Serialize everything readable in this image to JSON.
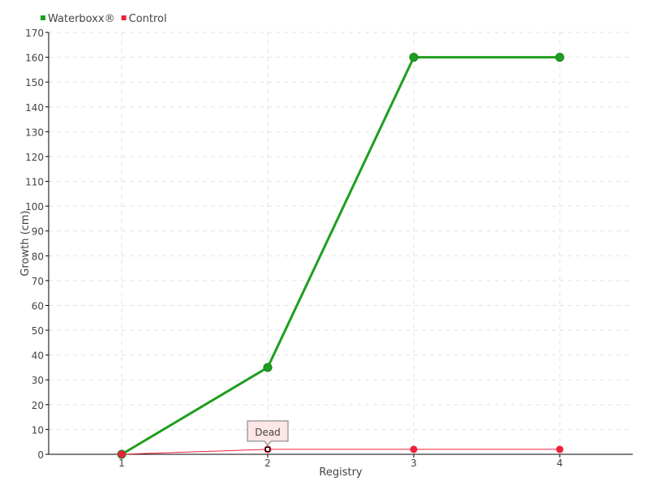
{
  "chart_data": {
    "type": "line",
    "title": "",
    "xlabel": "Registry",
    "ylabel": "Growth (cm)",
    "x": [
      1,
      2,
      3,
      4
    ],
    "xlim": [
      0.5,
      4.5
    ],
    "ylim": [
      0,
      170
    ],
    "yticks": [
      0,
      10,
      20,
      30,
      40,
      50,
      60,
      70,
      80,
      90,
      100,
      110,
      120,
      130,
      140,
      150,
      160,
      170
    ],
    "grid": true,
    "legend_position": "top-left",
    "series": [
      {
        "name": "Waterboxx®",
        "color": "#1f9e1f",
        "values": [
          0,
          35,
          160,
          160
        ]
      },
      {
        "name": "Control",
        "color": "#f0203a",
        "values": [
          0,
          2,
          2,
          2
        ]
      }
    ],
    "annotations": [
      {
        "text": "Dead",
        "series": "Control",
        "x": 2
      }
    ]
  }
}
